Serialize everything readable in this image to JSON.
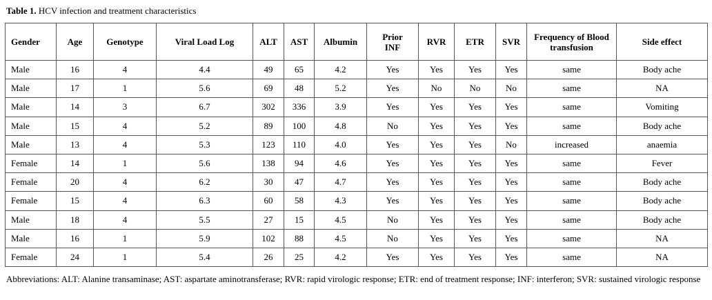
{
  "caption": {
    "label": "Table 1.",
    "text": "HCV infection and treatment characteristics"
  },
  "table": {
    "header": [
      "Gender",
      "Age",
      "Genotype",
      "Viral Load Log",
      "ALT",
      "AST",
      "Albumin",
      "Prior INF",
      "RVR",
      "ETR",
      "SVR",
      "Frequency of Blood transfusion",
      "Side effect"
    ],
    "rows": [
      [
        "Male",
        "16",
        "4",
        "4.4",
        "49",
        "65",
        "4.2",
        "Yes",
        "Yes",
        "Yes",
        "Yes",
        "same",
        "Body ache"
      ],
      [
        "Male",
        "17",
        "1",
        "5.6",
        "69",
        "48",
        "5.2",
        "Yes",
        "No",
        "No",
        "No",
        "same",
        "NA"
      ],
      [
        "Male",
        "14",
        "3",
        "6.7",
        "302",
        "336",
        "3.9",
        "Yes",
        "Yes",
        "Yes",
        "Yes",
        "same",
        "Vomiting"
      ],
      [
        "Male",
        "15",
        "4",
        "5.2",
        "89",
        "100",
        "4.8",
        "No",
        "Yes",
        "Yes",
        "Yes",
        "same",
        "Body ache"
      ],
      [
        "Male",
        "13",
        "4",
        "5.3",
        "123",
        "110",
        "4.0",
        "Yes",
        "Yes",
        "Yes",
        "No",
        "increased",
        "anaemia"
      ],
      [
        "Female",
        "14",
        "1",
        "5.6",
        "138",
        "94",
        "4.6",
        "Yes",
        "Yes",
        "Yes",
        "Yes",
        "same",
        "Fever"
      ],
      [
        "Female",
        "20",
        "4",
        "6.2",
        "30",
        "47",
        "4.7",
        "Yes",
        "Yes",
        "Yes",
        "Yes",
        "same",
        "Body ache"
      ],
      [
        "Female",
        "15",
        "4",
        "6.3",
        "60",
        "58",
        "4.3",
        "Yes",
        "Yes",
        "Yes",
        "Yes",
        "same",
        "Body ache"
      ],
      [
        "Male",
        "18",
        "4",
        "5.5",
        "27",
        "15",
        "4.5",
        "No",
        "Yes",
        "Yes",
        "Yes",
        "same",
        "Body ache"
      ],
      [
        "Male",
        "16",
        "1",
        "5.9",
        "102",
        "88",
        "4.5",
        "No",
        "Yes",
        "Yes",
        "Yes",
        "same",
        "NA"
      ],
      [
        "Female",
        "24",
        "1",
        "5.4",
        "26",
        "25",
        "4.2",
        "Yes",
        "Yes",
        "Yes",
        "Yes",
        "same",
        "NA"
      ]
    ]
  },
  "footnote": "Abbreviations: ALT: Alanine transaminase; AST: aspartate aminotransferase; RVR: rapid virologic response; ETR: end of treatment response; INF: interferon; SVR: sustained virologic response"
}
